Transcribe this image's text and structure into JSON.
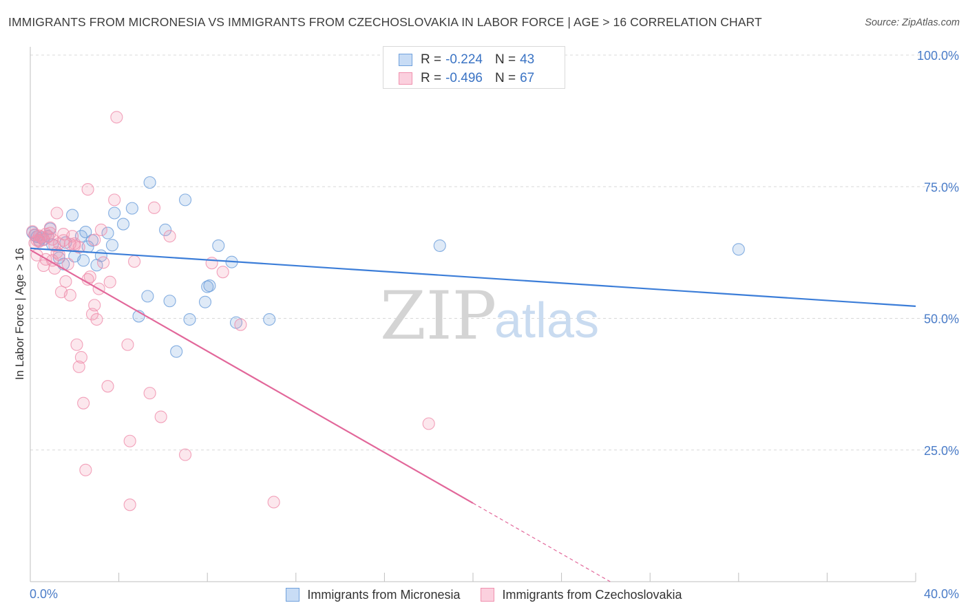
{
  "header": {
    "title": "IMMIGRANTS FROM MICRONESIA VS IMMIGRANTS FROM CZECHOSLOVAKIA IN LABOR FORCE | AGE > 16 CORRELATION CHART",
    "source": "Source: ZipAtlas.com"
  },
  "watermark": {
    "zip": "ZIP",
    "atlas": "atlas"
  },
  "stats_legend": [
    {
      "r_label": "R =",
      "r_value": "-0.224",
      "n_label": "N =",
      "n_value": "43",
      "color": "#6fa0dc"
    },
    {
      "r_label": "R =",
      "r_value": "-0.496",
      "n_label": "N =",
      "n_value": "67",
      "color": "#f090ae"
    }
  ],
  "bottom_legend": [
    {
      "label": "Immigrants from Micronesia",
      "color": "#6fa0dc"
    },
    {
      "label": "Immigrants from Czechoslovakia",
      "color": "#f090ae"
    }
  ],
  "chart_data": {
    "type": "scatter",
    "xlabel": "",
    "ylabel": "In Labor Force | Age > 16",
    "xlim": [
      0,
      40
    ],
    "ylim": [
      0,
      100
    ],
    "x_tick_labels": [
      "0.0%",
      "40.0%"
    ],
    "y_ticks": [
      25,
      50,
      75,
      100
    ],
    "y_tick_labels": [
      "25.0%",
      "50.0%",
      "75.0%",
      "100.0%"
    ],
    "grid": "horizontal dashed",
    "legend_placement": "top-center",
    "series": [
      {
        "name": "Immigrants from Micronesia",
        "color": "#6fa0dc",
        "trend": {
          "x": [
            0,
            40
          ],
          "y": [
            63.3,
            52.3
          ],
          "dashed_from": null
        },
        "points": [
          [
            0.1,
            66.3
          ],
          [
            0.2,
            65.8
          ],
          [
            0.3,
            65.5
          ],
          [
            0.4,
            64.8
          ],
          [
            0.5,
            65.3
          ],
          [
            0.6,
            65.0
          ],
          [
            0.8,
            65.6
          ],
          [
            0.9,
            67.0
          ],
          [
            1.0,
            64.0
          ],
          [
            1.3,
            61.5
          ],
          [
            1.5,
            60.3
          ],
          [
            1.6,
            64.4
          ],
          [
            1.9,
            69.6
          ],
          [
            2.0,
            61.8
          ],
          [
            2.3,
            65.6
          ],
          [
            2.4,
            61.0
          ],
          [
            2.5,
            66.4
          ],
          [
            2.6,
            63.6
          ],
          [
            2.8,
            64.8
          ],
          [
            3.0,
            60.1
          ],
          [
            3.2,
            61.9
          ],
          [
            3.5,
            66.2
          ],
          [
            3.7,
            63.9
          ],
          [
            3.8,
            70.0
          ],
          [
            4.2,
            67.9
          ],
          [
            4.6,
            70.9
          ],
          [
            4.9,
            50.4
          ],
          [
            5.3,
            54.2
          ],
          [
            5.4,
            75.8
          ],
          [
            6.1,
            66.8
          ],
          [
            6.3,
            53.3
          ],
          [
            6.6,
            43.7
          ],
          [
            7.0,
            72.5
          ],
          [
            7.2,
            49.8
          ],
          [
            7.9,
            53.1
          ],
          [
            8.0,
            56.0
          ],
          [
            8.1,
            56.2
          ],
          [
            8.5,
            63.8
          ],
          [
            9.1,
            60.7
          ],
          [
            9.3,
            49.2
          ],
          [
            10.8,
            49.8
          ],
          [
            18.5,
            63.8
          ],
          [
            32.0,
            63.1
          ]
        ]
      },
      {
        "name": "Immigrants from Czechoslovakia",
        "color": "#f090ae",
        "trend": {
          "x": [
            0,
            26.2
          ],
          "y": [
            63.0,
            0.0
          ],
          "dashed_from": 20.0
        },
        "points": [
          [
            0.1,
            66.5
          ],
          [
            0.2,
            65.9
          ],
          [
            0.3,
            64.8
          ],
          [
            0.4,
            64.6
          ],
          [
            0.5,
            65.5
          ],
          [
            0.6,
            64.9
          ],
          [
            0.7,
            61.2
          ],
          [
            0.8,
            65.5
          ],
          [
            0.9,
            67.2
          ],
          [
            1.0,
            65.0
          ],
          [
            1.1,
            63.8
          ],
          [
            1.2,
            70.0
          ],
          [
            1.3,
            62.1
          ],
          [
            1.4,
            55.0
          ],
          [
            1.5,
            64.8
          ],
          [
            1.6,
            57.0
          ],
          [
            1.7,
            60.3
          ],
          [
            1.8,
            54.4
          ],
          [
            1.9,
            65.6
          ],
          [
            2.0,
            63.8
          ],
          [
            2.1,
            45.0
          ],
          [
            2.2,
            40.8
          ],
          [
            2.3,
            42.6
          ],
          [
            2.4,
            33.9
          ],
          [
            2.5,
            21.2
          ],
          [
            2.6,
            57.4
          ],
          [
            2.7,
            57.9
          ],
          [
            2.8,
            50.8
          ],
          [
            2.9,
            52.5
          ],
          [
            3.0,
            49.8
          ],
          [
            3.1,
            55.6
          ],
          [
            3.2,
            66.8
          ],
          [
            3.3,
            60.6
          ],
          [
            3.5,
            37.1
          ],
          [
            3.6,
            56.9
          ],
          [
            3.8,
            72.5
          ],
          [
            3.9,
            88.2
          ],
          [
            4.4,
            45.0
          ],
          [
            4.5,
            26.7
          ],
          [
            4.5,
            14.6
          ],
          [
            4.7,
            60.8
          ],
          [
            5.4,
            35.8
          ],
          [
            5.6,
            71.0
          ],
          [
            5.9,
            31.3
          ],
          [
            6.3,
            65.6
          ],
          [
            7.0,
            24.1
          ],
          [
            8.2,
            60.5
          ],
          [
            8.7,
            58.8
          ],
          [
            9.5,
            48.8
          ],
          [
            11.0,
            15.1
          ],
          [
            18.0,
            30.0
          ],
          [
            1.0,
            61.0
          ],
          [
            1.1,
            59.5
          ],
          [
            0.3,
            62.0
          ],
          [
            2.6,
            74.5
          ],
          [
            0.6,
            60.0
          ],
          [
            1.5,
            66.0
          ],
          [
            2.2,
            63.5
          ],
          [
            0.9,
            66.2
          ],
          [
            1.3,
            64.2
          ],
          [
            0.4,
            65.7
          ],
          [
            2.9,
            64.9
          ],
          [
            1.8,
            64.1
          ],
          [
            0.7,
            66.0
          ],
          [
            1.2,
            62.5
          ],
          [
            2.0,
            64.2
          ],
          [
            0.2,
            64.3
          ]
        ]
      }
    ]
  }
}
